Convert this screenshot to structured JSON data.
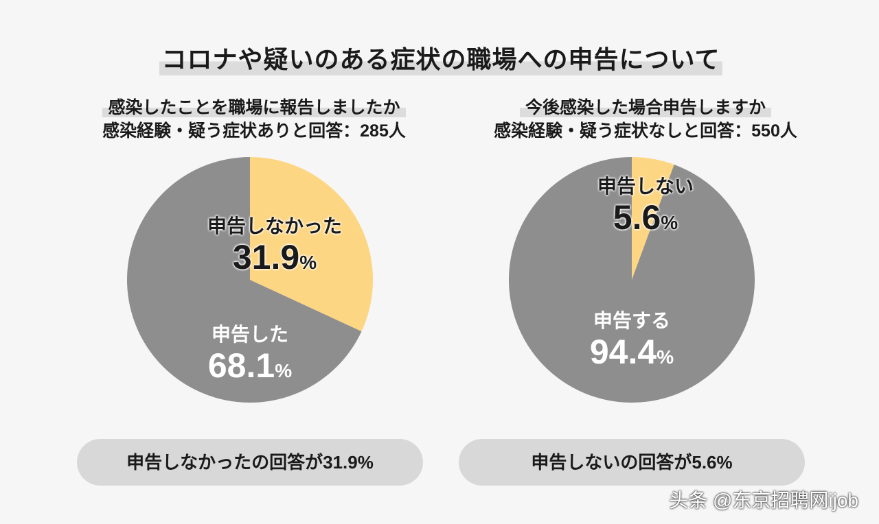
{
  "title": "コロナや疑いのある症状の職場への申告について",
  "colors": {
    "background": "#f6f6f6",
    "gray": "#8e8e8e",
    "yellow": "#fdd683",
    "pill": "#d8d8d8"
  },
  "chart_data": [
    {
      "type": "pie",
      "title": "感染したことを職場に報告しましたか",
      "subtitle": "感染経験・疑う症状ありと回答：285人",
      "slices": [
        {
          "label": "申告しなかった",
          "value": 31.9,
          "color": "#fdd683"
        },
        {
          "label": "申告した",
          "value": 68.1,
          "color": "#8e8e8e"
        }
      ],
      "summary": "申告しなかったの回答が31.9%"
    },
    {
      "type": "pie",
      "title": "今後感染した場合申告しますか",
      "subtitle": "感染経験・疑う症状なしと回答：550人",
      "slices": [
        {
          "label": "申告しない",
          "value": 5.6,
          "color": "#fdd683"
        },
        {
          "label": "申告する",
          "value": 94.4,
          "color": "#8e8e8e"
        }
      ],
      "summary": "申告しないの回答が5.6%"
    }
  ],
  "percent_sign": "%",
  "watermark": "头条 @东京招聘网ijob"
}
